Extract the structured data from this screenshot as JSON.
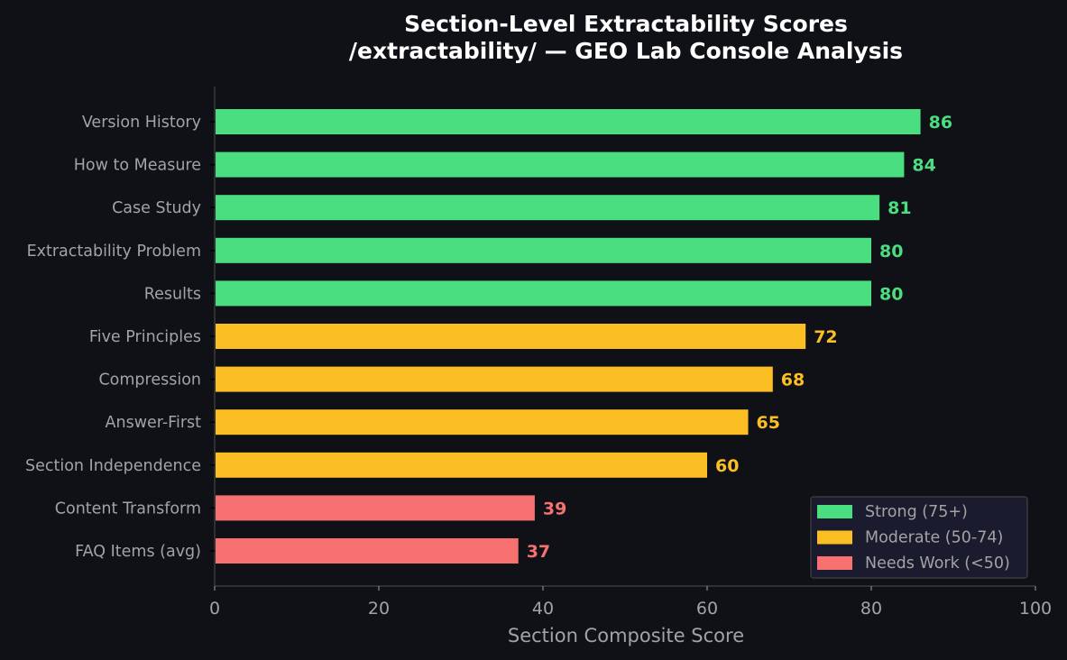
{
  "chart_data": {
    "type": "bar",
    "orientation": "horizontal",
    "title": "Section-Level Extractability Scores",
    "subtitle": "/extractability/ — GEO Lab Console Analysis",
    "xlabel": "Section Composite Score",
    "ylabel": "",
    "xlim": [
      0,
      100
    ],
    "xticks": [
      0,
      20,
      40,
      60,
      80,
      100
    ],
    "grid": false,
    "legend_position": "lower right",
    "categories": [
      "Version History",
      "How to Measure",
      "Case Study",
      "Extractability Problem",
      "Results",
      "Five Principles",
      "Compression",
      "Answer-First",
      "Section Independence",
      "Content Transform",
      "FAQ Items (avg)"
    ],
    "values": [
      86,
      84,
      81,
      80,
      80,
      72,
      68,
      65,
      60,
      39,
      37
    ],
    "tiers": [
      "strong",
      "strong",
      "strong",
      "strong",
      "strong",
      "moderate",
      "moderate",
      "moderate",
      "moderate",
      "needs_work",
      "needs_work"
    ],
    "legend": [
      {
        "key": "strong",
        "label": "Strong (75+)",
        "color": "#4ade80"
      },
      {
        "key": "moderate",
        "label": "Moderate (50-74)",
        "color": "#fbbf24"
      },
      {
        "key": "needs_work",
        "label": "Needs Work (<50)",
        "color": "#f87171"
      }
    ]
  },
  "colors": {
    "background": "#0f1117",
    "axis": "#3a3a3a",
    "text": "#a3a3a3",
    "title": "#ffffff",
    "legend_bg": "#1a1b2e",
    "legend_border": "#3a3a3a"
  }
}
